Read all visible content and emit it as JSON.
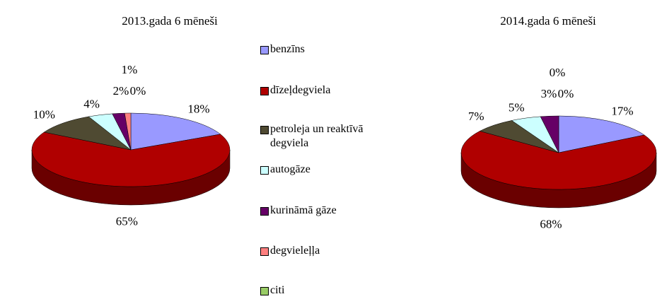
{
  "chart_data": [
    {
      "type": "pie",
      "title": "2013.gada 6 mēneši",
      "categories": [
        "benzīns",
        "dīzeļdegviela",
        "petroleja un reaktīvā degviela",
        "autogāze",
        "kurināmā gāze",
        "degvieleļļa",
        "citi"
      ],
      "values": [
        18,
        65,
        10,
        4,
        2,
        1,
        0
      ],
      "value_labels": [
        "18%",
        "65%",
        "10%",
        "4%",
        "2%",
        "1%",
        "0%"
      ],
      "colors": [
        "#9999ff",
        "#b00000",
        "#4f4a32",
        "#ccffff",
        "#660066",
        "#ff8080",
        "#99cc66"
      ]
    },
    {
      "type": "pie",
      "title": "2014.gada 6 mēneši",
      "categories": [
        "benzīns",
        "dīzeļdegviela",
        "petroleja un reaktīvā degviela",
        "autogāze",
        "kurināmā gāze",
        "degvieleļļa",
        "citi"
      ],
      "values": [
        17,
        68,
        7,
        5,
        3,
        0,
        0
      ],
      "value_labels": [
        "17%",
        "68%",
        "7%",
        "5%",
        "3%",
        "0%",
        "0%"
      ],
      "colors": [
        "#9999ff",
        "#b00000",
        "#4f4a32",
        "#ccffff",
        "#660066",
        "#ff8080",
        "#99cc66"
      ]
    }
  ]
}
